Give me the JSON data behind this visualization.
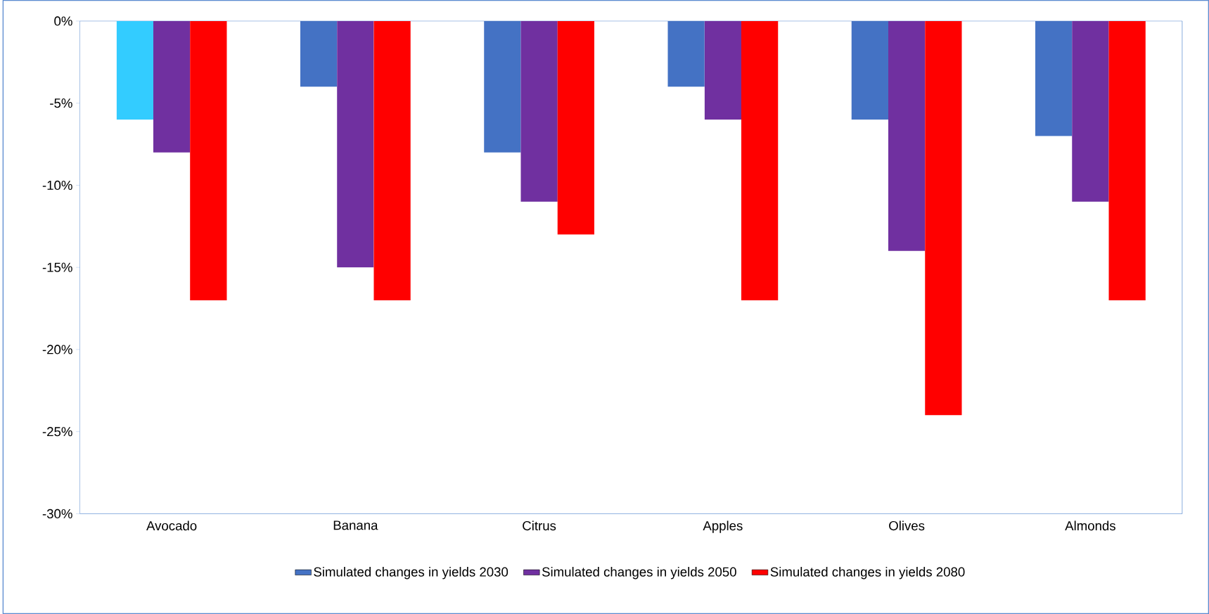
{
  "chart_data": {
    "type": "bar",
    "categories": [
      "Avocado",
      "Banana",
      "Citrus",
      "Apples",
      "Olives",
      "Almonds"
    ],
    "series": [
      {
        "name": "Simulated changes in yields 2030",
        "color": "#4472c4",
        "colors": [
          "#33ccff",
          "#4472c4",
          "#4472c4",
          "#4472c4",
          "#4472c4",
          "#4472c4"
        ],
        "values": [
          -6,
          -4,
          -8,
          -4,
          -6,
          -7
        ]
      },
      {
        "name": "Simulated changes in yields 2050",
        "color": "#7030a0",
        "values": [
          -8,
          -15,
          -11,
          -6,
          -14,
          -11
        ]
      },
      {
        "name": "Simulated changes in yields 2080",
        "color": "#ff0000",
        "values": [
          -17,
          -17,
          -13,
          -17,
          -24,
          -17
        ]
      }
    ],
    "ylim": [
      -30,
      0
    ],
    "yticks": [
      {
        "value": 0,
        "label": "0%"
      },
      {
        "value": -5,
        "label": "-5%"
      },
      {
        "value": -10,
        "label": "-10%"
      },
      {
        "value": -15,
        "label": "-15%"
      },
      {
        "value": -20,
        "label": "-20%"
      },
      {
        "value": -25,
        "label": "-25%"
      },
      {
        "value": -30,
        "label": "-30%"
      }
    ],
    "grid": false,
    "legend": "bottom"
  }
}
